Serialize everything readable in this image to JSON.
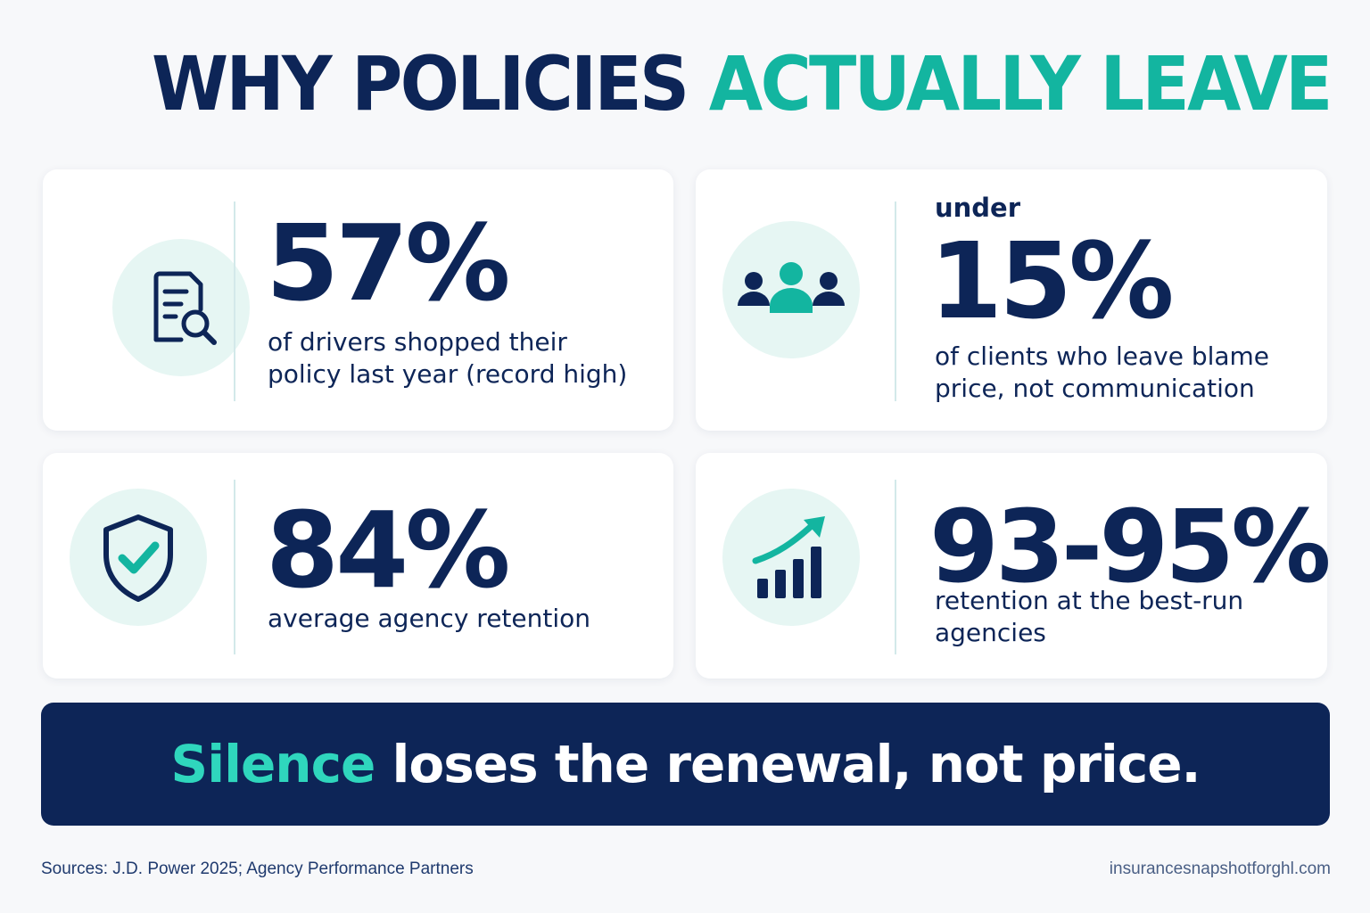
{
  "title": {
    "part1": "WHY POLICIES",
    "part2": "ACTUALLY LEAVE"
  },
  "stats": [
    {
      "icon": "document-search-icon",
      "prefix": "",
      "value": "57%",
      "line1": "of drivers shopped their",
      "line2": "policy last year (record high)"
    },
    {
      "icon": "people-group-icon",
      "prefix": "under",
      "value": "15%",
      "line1": "of clients who leave blame",
      "line2": "price, not communication"
    },
    {
      "icon": "shield-check-icon",
      "prefix": "",
      "value": "84%",
      "line1": "average agency retention",
      "line2": ""
    },
    {
      "icon": "growth-chart-icon",
      "prefix": "",
      "value": "93-95%",
      "line1": "retention at the best-run",
      "line2": "agencies"
    }
  ],
  "banner": {
    "highlight": "Silence",
    "rest": "loses the renewal, not price."
  },
  "footer": {
    "sources": "Sources: J.D. Power 2025; Agency Performance Partners",
    "website": "insurancesnapshotforghl.com"
  },
  "colors": {
    "navy": "#0d2557",
    "teal": "#13b5a0",
    "icon_bg": "#e6f6f3",
    "banner_highlight": "#2fd6bd"
  }
}
